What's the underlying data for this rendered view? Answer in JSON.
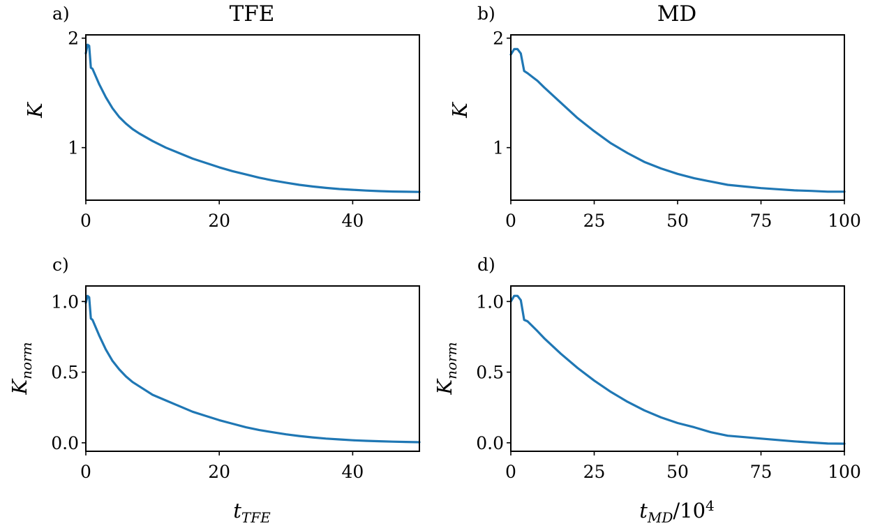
{
  "figure": {
    "column_titles": [
      "TFE",
      "MD"
    ],
    "series_color": "#1f77b4"
  },
  "chart_data": [
    {
      "id": "a",
      "type": "line",
      "panel_label": "a)",
      "title": "TFE",
      "xlabel": "",
      "ylabel": "K",
      "xlim": [
        0,
        50
      ],
      "ylim": [
        0.52,
        2.03
      ],
      "xticks": [
        0,
        20,
        40
      ],
      "xtick_labels": [
        "0",
        "20",
        "40"
      ],
      "yticks": [
        1,
        2
      ],
      "ytick_labels": [
        "1",
        "2"
      ],
      "series": [
        {
          "x": [
            0,
            0.25,
            0.5,
            0.75,
            1,
            2,
            3,
            4,
            5,
            6,
            7,
            8,
            10,
            12,
            14,
            16,
            18,
            20,
            22,
            24,
            26,
            28,
            30,
            32,
            34,
            36,
            38,
            40,
            42,
            44,
            46,
            48,
            50
          ],
          "y": [
            1.86,
            1.94,
            1.93,
            1.73,
            1.72,
            1.58,
            1.46,
            1.36,
            1.28,
            1.22,
            1.17,
            1.13,
            1.06,
            1.0,
            0.95,
            0.9,
            0.86,
            0.82,
            0.785,
            0.755,
            0.725,
            0.7,
            0.68,
            0.66,
            0.645,
            0.632,
            0.622,
            0.615,
            0.608,
            0.603,
            0.599,
            0.597,
            0.595
          ]
        }
      ]
    },
    {
      "id": "b",
      "type": "line",
      "panel_label": "b)",
      "title": "MD",
      "xlabel": "",
      "ylabel": "K",
      "xlim": [
        0,
        100
      ],
      "ylim": [
        0.52,
        2.03
      ],
      "xticks": [
        0,
        25,
        50,
        75,
        100
      ],
      "xtick_labels": [
        "0",
        "25",
        "50",
        "75",
        "100"
      ],
      "yticks": [
        1,
        2
      ],
      "ytick_labels": [
        "1",
        "2"
      ],
      "series": [
        {
          "x": [
            0,
            1,
            2,
            3,
            4,
            5,
            8,
            10,
            15,
            20,
            25,
            30,
            35,
            40,
            45,
            50,
            55,
            60,
            65,
            70,
            75,
            80,
            85,
            90,
            95,
            100
          ],
          "y": [
            1.85,
            1.9,
            1.9,
            1.86,
            1.7,
            1.68,
            1.61,
            1.55,
            1.41,
            1.27,
            1.15,
            1.04,
            0.95,
            0.87,
            0.81,
            0.76,
            0.72,
            0.69,
            0.66,
            0.645,
            0.63,
            0.62,
            0.61,
            0.605,
            0.598,
            0.598
          ]
        }
      ]
    },
    {
      "id": "c",
      "type": "line",
      "panel_label": "c)",
      "title": "",
      "xlabel": "t_TFE",
      "ylabel": "K_norm",
      "xlim": [
        0,
        50
      ],
      "ylim": [
        -0.06,
        1.11
      ],
      "xticks": [
        0,
        20,
        40
      ],
      "xtick_labels": [
        "0",
        "20",
        "40"
      ],
      "yticks": [
        0,
        0.5,
        1
      ],
      "ytick_labels": [
        "0.0",
        "0.5",
        "1.0"
      ],
      "series": [
        {
          "x": [
            0,
            0.25,
            0.5,
            0.75,
            1,
            2,
            3,
            4,
            5,
            6,
            7,
            8,
            10,
            12,
            14,
            16,
            18,
            20,
            22,
            24,
            26,
            28,
            30,
            32,
            34,
            36,
            38,
            40,
            42,
            44,
            46,
            48,
            50
          ],
          "y": [
            0.99,
            1.04,
            1.03,
            0.88,
            0.87,
            0.76,
            0.66,
            0.58,
            0.52,
            0.47,
            0.43,
            0.4,
            0.34,
            0.3,
            0.26,
            0.22,
            0.19,
            0.16,
            0.135,
            0.11,
            0.09,
            0.075,
            0.06,
            0.048,
            0.038,
            0.03,
            0.024,
            0.018,
            0.014,
            0.011,
            0.008,
            0.006,
            0.004
          ]
        }
      ]
    },
    {
      "id": "d",
      "type": "line",
      "panel_label": "d)",
      "title": "",
      "xlabel": "t_MD/10^4",
      "ylabel": "K_norm",
      "xlim": [
        0,
        100
      ],
      "ylim": [
        -0.06,
        1.11
      ],
      "xticks": [
        0,
        25,
        50,
        75,
        100
      ],
      "xtick_labels": [
        "0",
        "25",
        "50",
        "75",
        "100"
      ],
      "yticks": [
        0,
        0.5,
        1
      ],
      "ytick_labels": [
        "0.0",
        "0.5",
        "1.0"
      ],
      "series": [
        {
          "x": [
            0,
            1,
            2,
            3,
            4,
            5,
            8,
            10,
            15,
            20,
            25,
            30,
            35,
            40,
            45,
            50,
            55,
            60,
            65,
            70,
            75,
            80,
            85,
            90,
            95,
            100
          ],
          "y": [
            1.0,
            1.04,
            1.04,
            1.01,
            0.87,
            0.86,
            0.79,
            0.74,
            0.63,
            0.53,
            0.44,
            0.36,
            0.29,
            0.23,
            0.18,
            0.14,
            0.11,
            0.075,
            0.05,
            0.04,
            0.03,
            0.02,
            0.01,
            0.002,
            -0.005,
            -0.006
          ]
        }
      ]
    }
  ]
}
